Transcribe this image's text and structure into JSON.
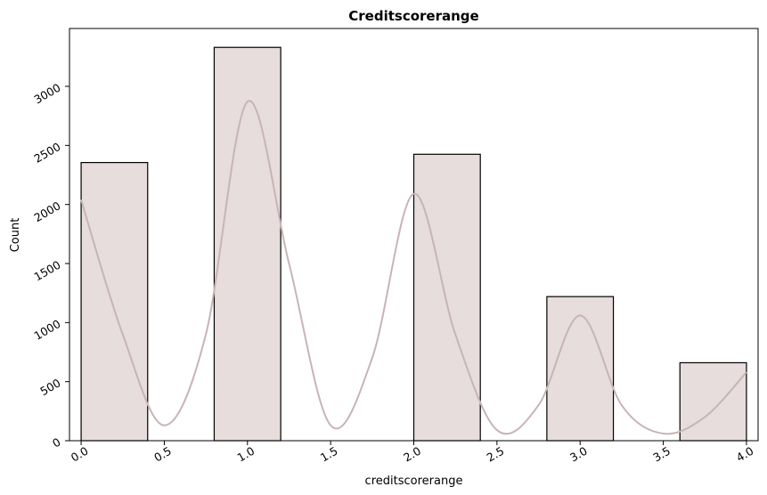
{
  "chart_data": {
    "type": "bar",
    "title": "Creditscorerange",
    "xlabel": "creditscorerange",
    "ylabel": "Count",
    "xlim": [
      -0.07,
      4.07
    ],
    "ylim": [
      0,
      3490
    ],
    "xticks": [
      0.0,
      0.5,
      1.0,
      1.5,
      2.0,
      2.5,
      3.0,
      3.5,
      4.0
    ],
    "xtick_labels": [
      "0.0",
      "0.5",
      "1.0",
      "1.5",
      "2.0",
      "2.5",
      "3.0",
      "3.5",
      "4.0"
    ],
    "yticks": [
      0,
      500,
      1000,
      1500,
      2000,
      2500,
      3000
    ],
    "ytick_labels": [
      "0",
      "500",
      "1000",
      "1500",
      "2000",
      "2500",
      "3000"
    ],
    "bins": [
      {
        "x0": 0.0,
        "x1": 0.4,
        "count": 2355
      },
      {
        "x0": 0.4,
        "x1": 0.8,
        "count": 0
      },
      {
        "x0": 0.8,
        "x1": 1.2,
        "count": 3330
      },
      {
        "x0": 1.2,
        "x1": 1.6,
        "count": 0
      },
      {
        "x0": 1.6,
        "x1": 2.0,
        "count": 0
      },
      {
        "x0": 2.0,
        "x1": 2.4,
        "count": 2425
      },
      {
        "x0": 2.4,
        "x1": 2.8,
        "count": 0
      },
      {
        "x0": 2.8,
        "x1": 3.2,
        "count": 1220
      },
      {
        "x0": 3.2,
        "x1": 3.6,
        "count": 0
      },
      {
        "x0": 3.6,
        "x1": 4.0,
        "count": 660
      }
    ],
    "kde": {
      "x": [
        0.0,
        0.25,
        0.5,
        0.75,
        1.0,
        1.25,
        1.5,
        1.75,
        2.0,
        2.25,
        2.5,
        2.75,
        3.0,
        3.25,
        3.5,
        3.75,
        4.0
      ],
      "y": [
        2040,
        900,
        130,
        900,
        2870,
        1500,
        130,
        700,
        2090,
        900,
        90,
        300,
        1060,
        300,
        60,
        200,
        580
      ]
    },
    "bar_color": "#e6dddc",
    "kde_color": "#c8b4b6",
    "grid": false,
    "legend": "none"
  }
}
